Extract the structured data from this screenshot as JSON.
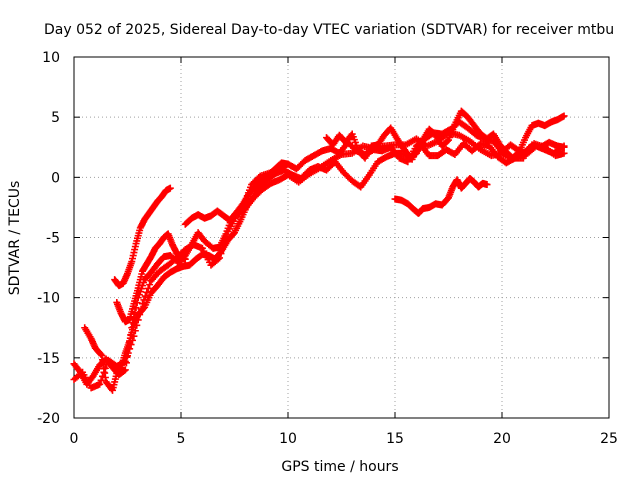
{
  "chart_data": {
    "type": "scatter",
    "title": "Day 052 of 2025, Sidereal Day-to-day VTEC variation (SDTVAR) for receiver mtbu",
    "xlabel": "GPS time / hours",
    "ylabel": "SDTVAR / TECUs",
    "xlim": [
      0,
      25
    ],
    "ylim": [
      -20,
      10
    ],
    "xticks": [
      0,
      5,
      10,
      15,
      20,
      25
    ],
    "yticks": [
      -20,
      -15,
      -10,
      -5,
      0,
      5,
      10
    ],
    "grid": true,
    "marker": "+",
    "color": "#ff0000",
    "series": [
      {
        "name": "track-1",
        "points": [
          [
            0.0,
            -15.5
          ],
          [
            0.3,
            -16.2
          ],
          [
            0.6,
            -17.2
          ],
          [
            0.9,
            -16.5
          ],
          [
            1.2,
            -15.6
          ],
          [
            1.5,
            -15.1
          ],
          [
            1.8,
            -15.8
          ],
          [
            2.1,
            -16.4
          ],
          [
            2.4,
            -16.0
          ],
          [
            2.7,
            -12.5
          ],
          [
            3.0,
            -10.0
          ],
          [
            3.3,
            -8.5
          ],
          [
            3.6,
            -7.9
          ],
          [
            3.9,
            -7.2
          ],
          [
            4.2,
            -6.6
          ],
          [
            4.5,
            -6.5
          ],
          [
            4.9,
            -7.1
          ],
          [
            5.2,
            -6.5
          ],
          [
            5.5,
            -5.6
          ],
          [
            5.8,
            -4.6
          ],
          [
            6.1,
            -5.3
          ],
          [
            6.5,
            -5.9
          ],
          [
            6.8,
            -5.8
          ],
          [
            7.1,
            -4.7
          ],
          [
            7.4,
            -3.3
          ],
          [
            7.7,
            -2.8
          ],
          [
            8.0,
            -2.0
          ],
          [
            8.3,
            -0.6
          ],
          [
            8.7,
            0.1
          ],
          [
            9.2,
            0.4
          ],
          [
            9.6,
            0.9
          ],
          [
            10.0,
            1.1
          ],
          [
            10.4,
            0.7
          ],
          [
            10.8,
            1.4
          ],
          [
            11.2,
            1.8
          ],
          [
            11.6,
            2.2
          ],
          [
            12.0,
            2.4
          ],
          [
            12.4,
            2.0
          ],
          [
            12.8,
            2.9
          ],
          [
            13.2,
            2.2
          ],
          [
            13.6,
            1.9
          ],
          [
            14.0,
            2.3
          ],
          [
            14.4,
            2.2
          ],
          [
            14.8,
            2.5
          ],
          [
            15.2,
            1.6
          ],
          [
            15.6,
            1.3
          ],
          [
            16.0,
            2.6
          ],
          [
            16.4,
            3.2
          ],
          [
            16.8,
            3.7
          ],
          [
            17.2,
            3.6
          ],
          [
            17.6,
            4.0
          ],
          [
            18.0,
            4.6
          ],
          [
            18.4,
            4.1
          ],
          [
            18.8,
            3.5
          ],
          [
            19.2,
            3.2
          ],
          [
            19.6,
            3.0
          ],
          [
            20.0,
            2.1
          ],
          [
            20.4,
            2.7
          ],
          [
            20.8,
            2.2
          ],
          [
            21.2,
            2.0
          ],
          [
            21.6,
            2.6
          ],
          [
            22.0,
            2.3
          ],
          [
            22.4,
            2.0
          ],
          [
            22.9,
            2.6
          ]
        ]
      },
      {
        "name": "track-2",
        "points": [
          [
            0.0,
            -16.8
          ],
          [
            0.4,
            -16.2
          ],
          [
            0.8,
            -17.5
          ],
          [
            1.2,
            -17.2
          ],
          [
            1.6,
            -15.2
          ],
          [
            2.0,
            -15.7
          ],
          [
            2.4,
            -15.3
          ],
          [
            2.8,
            -13.2
          ],
          [
            3.2,
            -10.5
          ],
          [
            3.6,
            -8.6
          ],
          [
            4.0,
            -7.8
          ],
          [
            4.4,
            -7.3
          ],
          [
            4.8,
            -6.7
          ],
          [
            5.2,
            -6.0
          ],
          [
            5.6,
            -5.6
          ],
          [
            6.0,
            -5.9
          ],
          [
            6.4,
            -7.3
          ],
          [
            6.8,
            -6.7
          ],
          [
            7.2,
            -4.5
          ],
          [
            7.6,
            -3.2
          ],
          [
            8.0,
            -2.6
          ],
          [
            8.4,
            -1.7
          ],
          [
            8.8,
            -1.0
          ],
          [
            9.2,
            -0.5
          ],
          [
            9.6,
            -0.2
          ],
          [
            10.0,
            0.2
          ],
          [
            10.5,
            -0.4
          ],
          [
            11.0,
            0.3
          ],
          [
            11.5,
            0.8
          ],
          [
            12.0,
            1.4
          ],
          [
            12.5,
            1.9
          ],
          [
            13.0,
            2.0
          ],
          [
            13.5,
            2.6
          ],
          [
            14.0,
            2.4
          ],
          [
            14.5,
            2.6
          ],
          [
            15.0,
            2.7
          ],
          [
            15.5,
            2.7
          ],
          [
            16.0,
            3.2
          ],
          [
            16.5,
            2.6
          ],
          [
            17.0,
            3.0
          ],
          [
            17.5,
            3.7
          ],
          [
            18.0,
            3.5
          ],
          [
            18.5,
            3.0
          ],
          [
            19.0,
            2.3
          ],
          [
            19.5,
            1.8
          ],
          [
            20.0,
            2.0
          ],
          [
            20.5,
            1.5
          ],
          [
            21.0,
            2.0
          ],
          [
            21.5,
            2.8
          ],
          [
            22.0,
            2.5
          ],
          [
            22.5,
            1.8
          ],
          [
            22.9,
            2.0
          ]
        ]
      },
      {
        "name": "track-3",
        "points": [
          [
            0.5,
            -12.5
          ],
          [
            0.8,
            -13.4
          ],
          [
            1.0,
            -14.2
          ],
          [
            1.3,
            -14.8
          ],
          [
            1.5,
            -17.0
          ],
          [
            1.8,
            -17.7
          ],
          [
            2.0,
            -16.3
          ],
          [
            2.2,
            -15.8
          ],
          [
            2.4,
            -14.6
          ],
          [
            2.6,
            -13.6
          ],
          [
            2.8,
            -12.2
          ],
          [
            3.0,
            -11.4
          ],
          [
            3.3,
            -10.8
          ],
          [
            3.6,
            -9.6
          ],
          [
            3.9,
            -9.0
          ],
          [
            4.2,
            -8.3
          ],
          [
            4.5,
            -7.9
          ],
          [
            4.8,
            -7.6
          ],
          [
            5.1,
            -7.4
          ],
          [
            5.4,
            -7.3
          ],
          [
            5.7,
            -6.8
          ],
          [
            6.0,
            -6.4
          ],
          [
            6.3,
            -6.5
          ],
          [
            6.6,
            -6.8
          ],
          [
            6.9,
            -6.1
          ],
          [
            7.2,
            -5.2
          ],
          [
            7.5,
            -4.6
          ],
          [
            7.8,
            -3.5
          ],
          [
            8.1,
            -2.3
          ],
          [
            8.4,
            -1.6
          ],
          [
            8.7,
            -0.8
          ],
          [
            9.0,
            -0.2
          ],
          [
            9.4,
            0.3
          ],
          [
            9.8,
            0.6
          ],
          [
            10.2,
            0.2
          ],
          [
            10.6,
            -0.1
          ],
          [
            11.0,
            0.6
          ],
          [
            11.4,
            0.9
          ],
          [
            11.8,
            0.6
          ],
          [
            12.2,
            1.3
          ],
          [
            12.6,
            0.4
          ],
          [
            13.0,
            -0.3
          ],
          [
            13.4,
            -0.8
          ],
          [
            13.8,
            0.2
          ],
          [
            14.2,
            1.3
          ],
          [
            14.6,
            1.7
          ],
          [
            15.0,
            2.0
          ],
          [
            15.4,
            2.0
          ],
          [
            15.8,
            1.5
          ],
          [
            16.2,
            2.7
          ],
          [
            16.6,
            1.8
          ],
          [
            17.0,
            1.8
          ],
          [
            17.4,
            2.3
          ],
          [
            17.8,
            1.9
          ],
          [
            18.2,
            2.8
          ],
          [
            18.6,
            2.2
          ],
          [
            19.0,
            2.8
          ],
          [
            19.4,
            2.6
          ],
          [
            19.8,
            1.7
          ],
          [
            20.2,
            1.2
          ],
          [
            20.6,
            1.6
          ],
          [
            21.0,
            1.6
          ],
          [
            21.4,
            2.7
          ],
          [
            21.8,
            2.5
          ],
          [
            22.2,
            2.9
          ],
          [
            22.6,
            2.6
          ],
          [
            22.9,
            2.5
          ]
        ]
      },
      {
        "name": "track-4",
        "points": [
          [
            1.9,
            -8.5
          ],
          [
            2.1,
            -9.0
          ],
          [
            2.3,
            -8.8
          ],
          [
            2.5,
            -8.0
          ],
          [
            2.7,
            -7.0
          ],
          [
            2.9,
            -5.5
          ],
          [
            3.1,
            -4.2
          ],
          [
            3.3,
            -3.5
          ],
          [
            3.5,
            -3.0
          ],
          [
            3.7,
            -2.5
          ],
          [
            3.9,
            -2.0
          ],
          [
            4.1,
            -1.6
          ],
          [
            4.3,
            -1.1
          ],
          [
            4.5,
            -0.9
          ]
        ]
      },
      {
        "name": "track-5",
        "points": [
          [
            2.0,
            -10.4
          ],
          [
            2.2,
            -11.3
          ],
          [
            2.4,
            -12.0
          ],
          [
            2.6,
            -11.8
          ],
          [
            2.8,
            -10.5
          ],
          [
            3.0,
            -9.2
          ],
          [
            3.2,
            -7.8
          ],
          [
            3.4,
            -7.2
          ],
          [
            3.6,
            -6.6
          ],
          [
            3.8,
            -5.9
          ],
          [
            4.0,
            -5.5
          ],
          [
            4.2,
            -5.0
          ],
          [
            4.4,
            -4.7
          ],
          [
            4.6,
            -5.6
          ],
          [
            4.8,
            -6.3
          ],
          [
            5.0,
            -6.7
          ],
          [
            5.2,
            -6.8
          ]
        ]
      },
      {
        "name": "track-6",
        "points": [
          [
            5.2,
            -3.9
          ],
          [
            5.5,
            -3.4
          ],
          [
            5.8,
            -3.1
          ],
          [
            6.1,
            -3.4
          ],
          [
            6.4,
            -3.2
          ],
          [
            6.7,
            -2.8
          ],
          [
            7.0,
            -3.2
          ],
          [
            7.3,
            -3.6
          ],
          [
            7.6,
            -2.9
          ],
          [
            7.9,
            -2.2
          ],
          [
            8.2,
            -1.3
          ],
          [
            8.5,
            -0.7
          ],
          [
            8.8,
            -0.3
          ],
          [
            9.1,
            0.2
          ],
          [
            9.4,
            0.7
          ],
          [
            9.7,
            1.2
          ],
          [
            10.0,
            1.1
          ]
        ]
      },
      {
        "name": "track-7",
        "points": [
          [
            11.8,
            3.3
          ],
          [
            12.1,
            2.7
          ],
          [
            12.4,
            3.5
          ],
          [
            12.7,
            2.9
          ],
          [
            13.0,
            3.6
          ],
          [
            13.3,
            2.2
          ],
          [
            13.6,
            1.6
          ],
          [
            13.9,
            2.6
          ],
          [
            14.2,
            2.7
          ],
          [
            14.5,
            3.5
          ],
          [
            14.8,
            4.1
          ],
          [
            15.1,
            3.2
          ],
          [
            15.4,
            2.4
          ],
          [
            15.7,
            1.7
          ],
          [
            16.0,
            2.0
          ],
          [
            16.3,
            3.1
          ],
          [
            16.6,
            4.0
          ],
          [
            16.9,
            3.5
          ],
          [
            17.2,
            2.6
          ],
          [
            17.5,
            3.1
          ],
          [
            17.8,
            4.4
          ],
          [
            18.1,
            5.5
          ],
          [
            18.4,
            5.0
          ],
          [
            18.7,
            4.3
          ],
          [
            19.0,
            3.6
          ],
          [
            19.3,
            3.2
          ],
          [
            19.6,
            3.6
          ],
          [
            19.9,
            2.7
          ],
          [
            20.2,
            2.1
          ],
          [
            20.5,
            1.6
          ],
          [
            20.8,
            2.1
          ],
          [
            21.1,
            3.3
          ],
          [
            21.4,
            4.3
          ],
          [
            21.7,
            4.5
          ],
          [
            22.0,
            4.3
          ],
          [
            22.3,
            4.6
          ],
          [
            22.6,
            4.8
          ],
          [
            22.9,
            5.1
          ]
        ]
      },
      {
        "name": "track-8",
        "points": [
          [
            15.0,
            -1.8
          ],
          [
            15.3,
            -1.9
          ],
          [
            15.6,
            -2.2
          ],
          [
            15.9,
            -2.7
          ],
          [
            16.1,
            -3.0
          ],
          [
            16.3,
            -2.6
          ],
          [
            16.6,
            -2.5
          ],
          [
            16.9,
            -2.2
          ],
          [
            17.2,
            -2.3
          ],
          [
            17.5,
            -1.7
          ],
          [
            17.7,
            -0.8
          ],
          [
            17.9,
            -0.2
          ],
          [
            18.1,
            -0.9
          ],
          [
            18.3,
            -0.5
          ],
          [
            18.5,
            -0.1
          ],
          [
            18.7,
            -0.4
          ],
          [
            18.9,
            -0.8
          ],
          [
            19.1,
            -0.5
          ],
          [
            19.3,
            -0.6
          ]
        ]
      }
    ]
  }
}
